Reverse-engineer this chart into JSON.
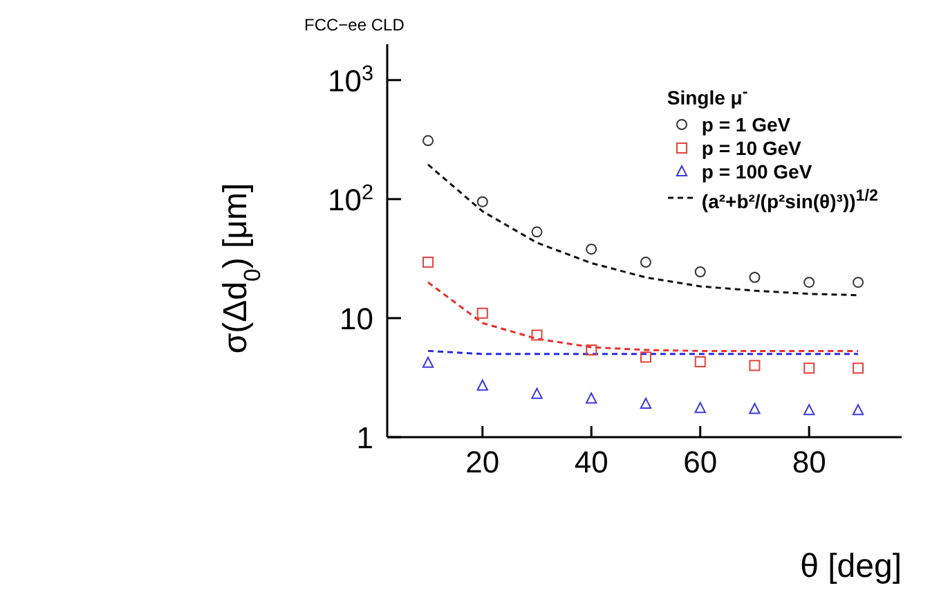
{
  "chart_data": {
    "type": "scatter",
    "title": "FCC−ee CLD",
    "xlabel": "θ [deg]",
    "ylabel": "σ(Δd$_{0}$) [μm]",
    "legend_title": "Single μ$^{-}$",
    "legend": "top right",
    "log": "y",
    "xlim": [
      2.5,
      97
    ],
    "xticks": [
      20,
      40,
      60,
      80
    ],
    "ylim": [
      1,
      2000
    ],
    "yticks": [
      {
        "value": 1000,
        "label": "10$^{3}$"
      },
      {
        "value": 100,
        "label": "10$^{2}$"
      },
      10,
      1
    ],
    "series": [
      {
        "name": "p = 1 GeV",
        "marker": "circle",
        "color": "#333333",
        "x": [
          10,
          20,
          30,
          40,
          50,
          60,
          70,
          80,
          89
        ],
        "values": [
          310,
          95,
          53,
          38,
          29.5,
          24.5,
          22,
          20,
          20
        ]
      },
      {
        "name": "p = 10 GeV",
        "marker": "square",
        "color": "#e8403a",
        "x": [
          10,
          20,
          30,
          40,
          50,
          60,
          70,
          80,
          89
        ],
        "values": [
          29.5,
          11,
          7.2,
          5.4,
          4.7,
          4.3,
          4.0,
          3.8,
          3.8
        ]
      },
      {
        "name": "p = 100 GeV",
        "marker": "triangle",
        "color": "#3a3ae0",
        "x": [
          10,
          20,
          30,
          40,
          50,
          60,
          70,
          80,
          89
        ],
        "values": [
          4.2,
          2.7,
          2.3,
          2.1,
          1.9,
          1.75,
          1.72,
          1.68,
          1.68
        ]
      },
      {
        "name": "(a²+b²/(p²sin(θ)³))$^{1/2}$",
        "type": "line",
        "marker": "none",
        "line_style": "dashed",
        "color": "#111111",
        "x": [
          10,
          20,
          30,
          40,
          50,
          60,
          70,
          80,
          89
        ],
        "values": [
          195,
          79,
          43,
          29,
          22,
          18.5,
          17,
          16,
          15.6
        ]
      },
      {
        "type": "line",
        "marker": "none",
        "line_style": "dashed",
        "color": "#e8302a",
        "x": [
          10,
          20,
          30,
          40,
          50,
          60,
          70,
          80,
          89
        ],
        "values": [
          20,
          9.1,
          6.7,
          5.7,
          5.4,
          5.3,
          5.3,
          5.3,
          5.3
        ]
      },
      {
        "type": "line",
        "marker": "none",
        "line_style": "dashed",
        "color": "#2a2ae0",
        "x": [
          10,
          20,
          30,
          40,
          50,
          60,
          70,
          80,
          89
        ],
        "values": [
          5.3,
          5.0,
          5.0,
          5.0,
          5.0,
          5.0,
          5.0,
          5.0,
          5.0
        ]
      }
    ]
  }
}
